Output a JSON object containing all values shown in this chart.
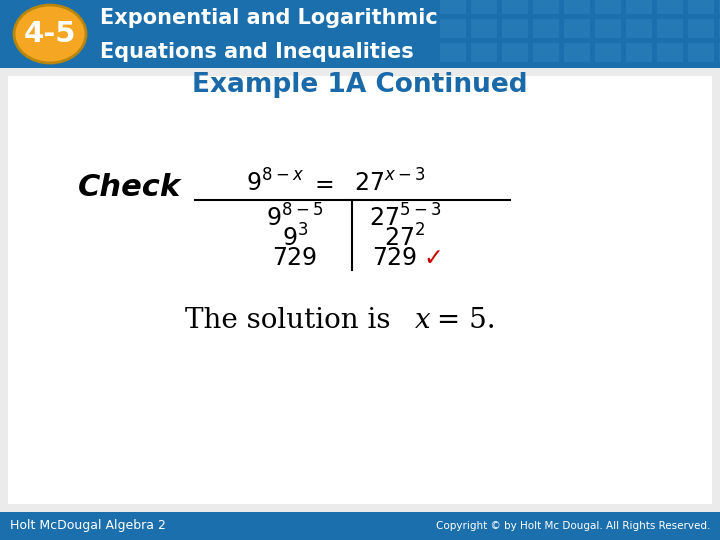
{
  "header_bg_color": "#1b6fad",
  "badge_color": "#f5a623",
  "badge_text": "4-5",
  "header_line1": "Exponential and Logarithmic",
  "header_line2": "Equations and Inequalities",
  "header_text_color": "#ffffff",
  "example_title": "Example 1A Continued",
  "example_title_color": "#1a6aaa",
  "check_label": "Check",
  "body_bg_color": "#f0f0f0",
  "footer_bg_color": "#1b6fad",
  "footer_left": "Holt McDougal Algebra 2",
  "footer_right": "Copyright © by Holt Mc Dougal. All Rights Reserved.",
  "footer_text_color": "#ffffff",
  "check_mark_color": "#cc0000",
  "tile_color": "#3a8fc4",
  "tile_alpha": 0.35
}
